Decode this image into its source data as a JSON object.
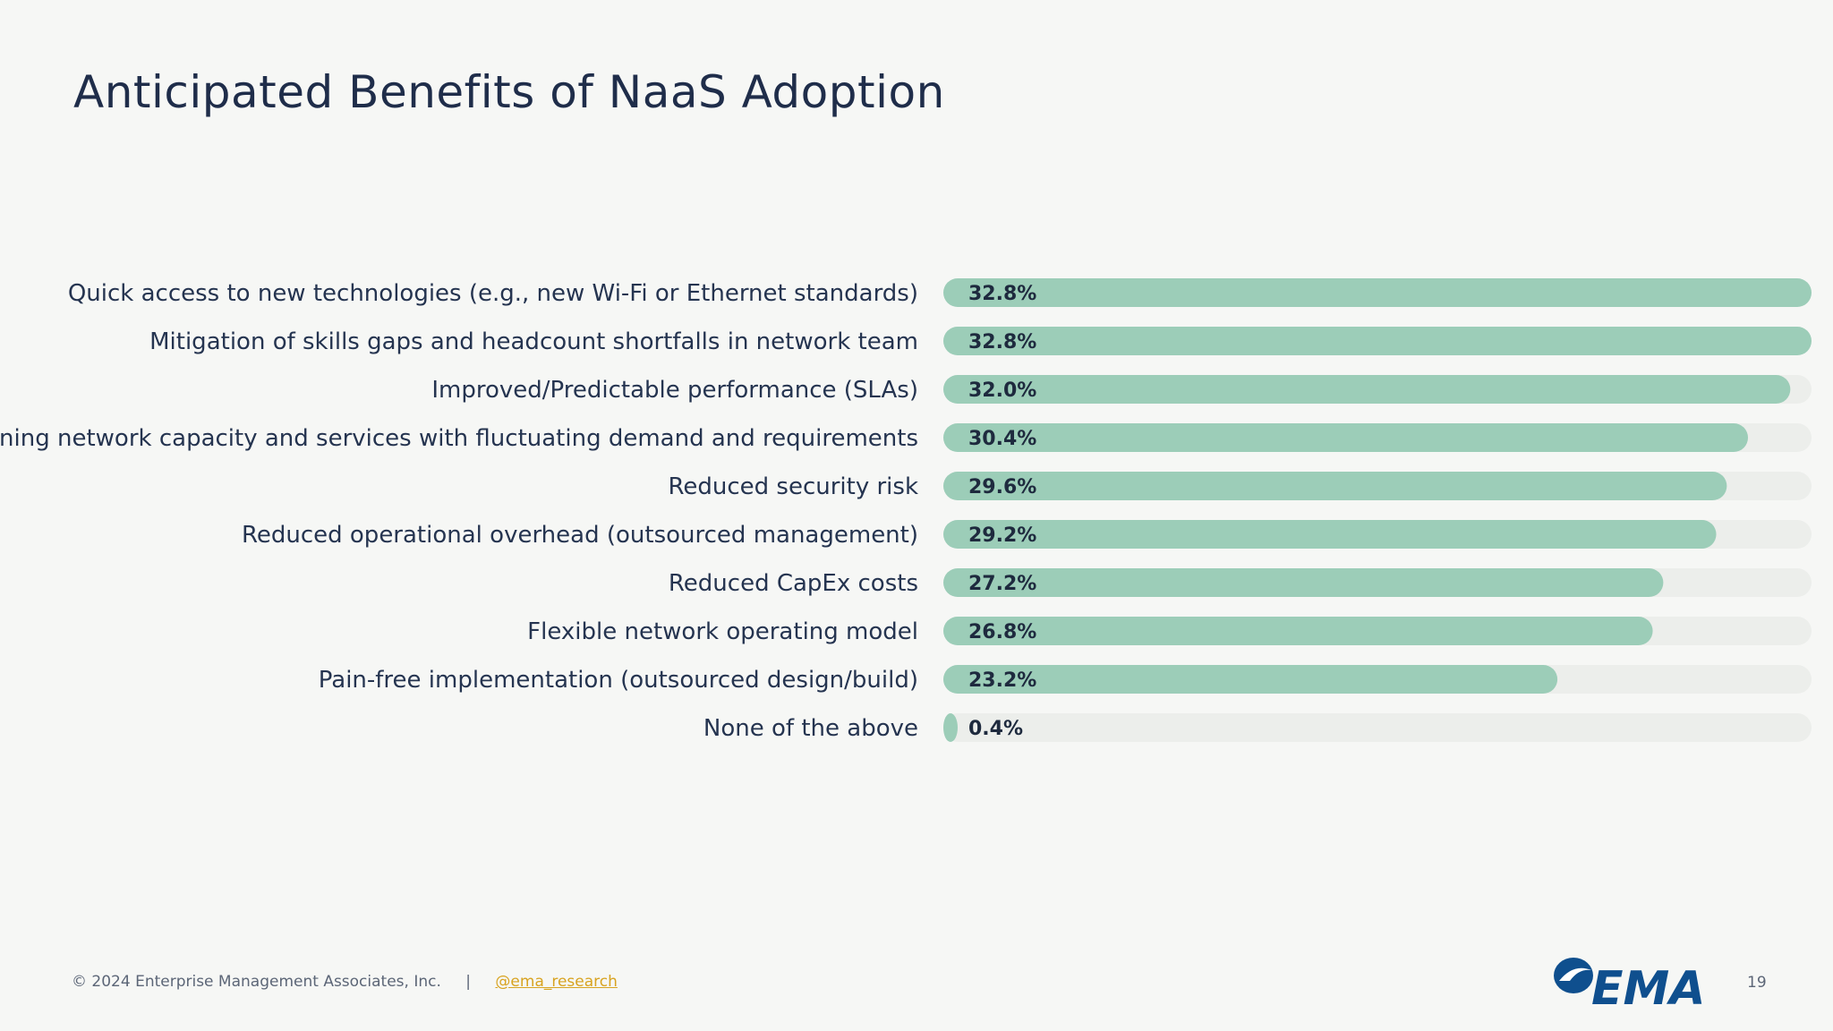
{
  "slide": {
    "title": "Anticipated Benefits of NaaS Adoption",
    "page_number": "19"
  },
  "footer": {
    "copyright": "© 2024 Enterprise Management Associates, Inc.",
    "separator": "|",
    "handle": "@ema_research"
  },
  "logo": {
    "text": "EMA",
    "icon": "ema-swirl-logo"
  },
  "colors": {
    "bar_fill": "#9ccdb8",
    "bar_track": "#eceeeb",
    "title": "#1f2d4a",
    "link": "#d8a320",
    "logo_blue": "#0f4f8e"
  },
  "chart_data": {
    "type": "bar",
    "orientation": "horizontal",
    "categories": [
      "Quick access to new technologies (e.g., new Wi-Fi or Ethernet standards)",
      "Mitigation of skills gaps and headcount shortfalls in network team",
      "Improved/Predictable performance (SLAs)",
      "Aligning network capacity and services with fluctuating demand and requirements",
      "Reduced security risk",
      "Reduced operational overhead (outsourced management)",
      "Reduced CapEx costs",
      "Flexible network operating model",
      "Pain-free implementation (outsourced design/build)",
      "None of the above"
    ],
    "values": [
      32.8,
      32.8,
      32.0,
      30.4,
      29.6,
      29.2,
      27.2,
      26.8,
      23.2,
      0.4
    ],
    "value_labels": [
      "32.8%",
      "32.8%",
      "32.0%",
      "30.4%",
      "29.6%",
      "29.2%",
      "27.2%",
      "26.8%",
      "23.2%",
      "0.4%"
    ],
    "xlim": [
      0,
      32.8
    ],
    "grid": false,
    "legend": "none"
  }
}
